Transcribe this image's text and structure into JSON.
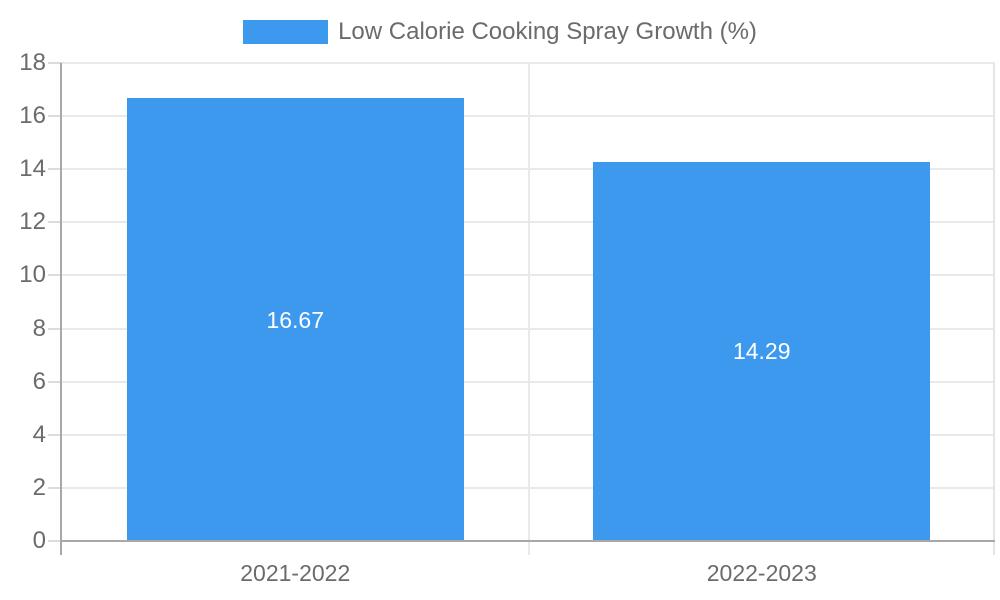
{
  "chart_data": {
    "type": "bar",
    "title": "Low Calorie Cooking Spray Growth (%)",
    "categories": [
      "2021-2022",
      "2022-2023"
    ],
    "values": [
      16.67,
      14.29
    ],
    "value_labels": [
      "16.67",
      "14.29"
    ],
    "xlabel": "",
    "ylabel": "",
    "ylim": [
      0,
      18
    ],
    "y_ticks": [
      0,
      2,
      4,
      6,
      8,
      10,
      12,
      14,
      16,
      18
    ],
    "grid": true,
    "legend_position": "top-center",
    "legend_entries": [
      "Low Calorie Cooking Spray Growth (%)"
    ]
  },
  "colors": {
    "bar": "#3c99ee",
    "bar_label": "#ffffff",
    "axis_line": "#a8a8a8",
    "gridline": "#e9e9e9",
    "tick": "#dcdcdc",
    "right_border": "#e5e5e5",
    "text": "#6b6b6b",
    "background": "#ffffff"
  }
}
